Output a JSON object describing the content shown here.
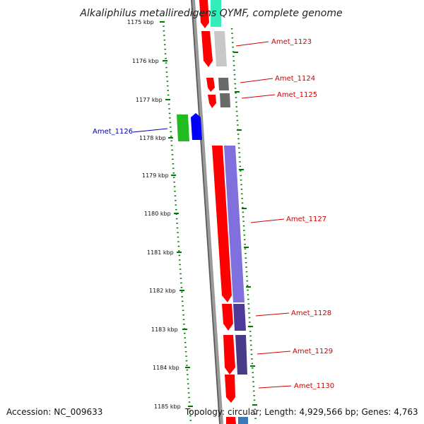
{
  "title": "Alkaliphilus metalliredigens QYMF, complete genome",
  "footer": {
    "accession": "Accession: NC_009633",
    "topology": "Topology: circular; Length: 4,929,566 bp; Genes: 4,763"
  },
  "scale_ticks": [
    "1175 kbp",
    "1176 kbp",
    "1177 kbp",
    "1178 kbp",
    "1179 kbp",
    "1180 kbp",
    "1181 kbp",
    "1182 kbp",
    "1183 kbp",
    "1184 kbp",
    "1185 kbp"
  ],
  "genes": [
    {
      "name": "Amet_1123",
      "color": "#cc0000"
    },
    {
      "name": "Amet_1124",
      "color": "#cc0000"
    },
    {
      "name": "Amet_1125",
      "color": "#cc0000"
    },
    {
      "name": "Amet_1126",
      "color": "#0000aa"
    },
    {
      "name": "Amet_1127",
      "color": "#cc0000"
    },
    {
      "name": "Amet_1128",
      "color": "#cc0000"
    },
    {
      "name": "Amet_1129",
      "color": "#cc0000"
    },
    {
      "name": "Amet_1130",
      "color": "#cc0000"
    }
  ],
  "colors": {
    "scale_dots": "#007700",
    "backbone": "#9a9a9a",
    "cds_forward": "#ff0000",
    "cog_teal": "#33eebb",
    "cog_light_gray": "#c8c8c8",
    "cog_dark_gray": "#707070",
    "cog_purple": "#8070dd",
    "cog_green": "#22bb22",
    "cds_reverse": "#0000ff"
  }
}
